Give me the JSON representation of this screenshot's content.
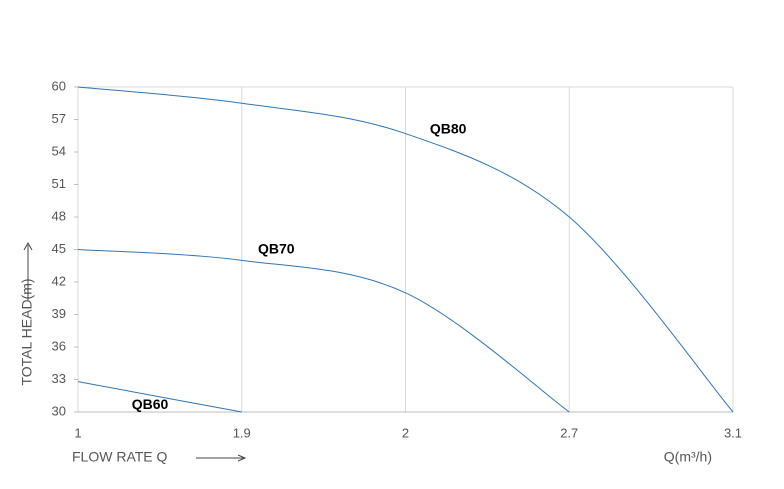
{
  "chart_data": {
    "type": "line",
    "y_label": "TOTAL HEAD(m)",
    "x_label": "FLOW RATE Q",
    "x_unit_label": "Q(m³/h)",
    "categories": [
      "1",
      "1.9",
      "2",
      "2.7",
      "3.1"
    ],
    "series": [
      {
        "name": "QB60",
        "color": "#2e75b6",
        "values": [
          32.8,
          30,
          null,
          null,
          null
        ]
      },
      {
        "name": "QB70",
        "color": "#2e75b6",
        "values": [
          45,
          44,
          41,
          30,
          null
        ]
      },
      {
        "name": "QB80",
        "color": "#2e75b6",
        "values": [
          60,
          58.5,
          55.7,
          48,
          30
        ]
      }
    ],
    "ylim": [
      30,
      60
    ],
    "yticks": [
      30,
      33,
      36,
      39,
      42,
      45,
      48,
      51,
      54,
      57,
      60
    ],
    "grid": true
  }
}
